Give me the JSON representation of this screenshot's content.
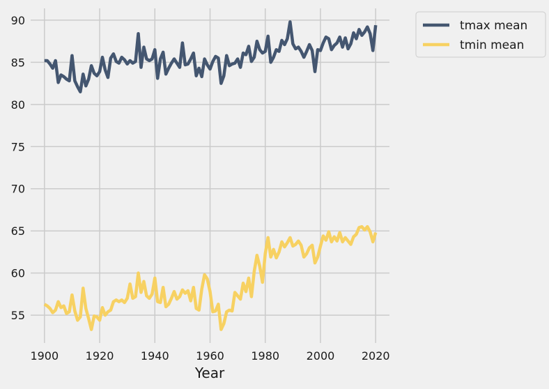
{
  "chart_data": {
    "type": "line",
    "xlabel": "Year",
    "ylabel": "",
    "xlim": [
      1895,
      2025
    ],
    "ylim": [
      51.7,
      91.4
    ],
    "xticks": [
      1900,
      1920,
      1940,
      1960,
      1980,
      2000,
      2020
    ],
    "yticks": [
      55,
      60,
      65,
      70,
      75,
      80,
      85,
      90
    ],
    "grid": true,
    "legend_position": "outside-top-right",
    "x": [
      1900,
      1901,
      1902,
      1903,
      1904,
      1905,
      1906,
      1907,
      1908,
      1909,
      1910,
      1911,
      1912,
      1913,
      1914,
      1915,
      1916,
      1917,
      1918,
      1919,
      1920,
      1921,
      1922,
      1923,
      1924,
      1925,
      1926,
      1927,
      1928,
      1929,
      1930,
      1931,
      1932,
      1933,
      1934,
      1935,
      1936,
      1937,
      1938,
      1939,
      1940,
      1941,
      1942,
      1943,
      1944,
      1945,
      1946,
      1947,
      1948,
      1949,
      1950,
      1951,
      1952,
      1953,
      1954,
      1955,
      1956,
      1957,
      1958,
      1959,
      1960,
      1961,
      1962,
      1963,
      1964,
      1965,
      1966,
      1967,
      1968,
      1969,
      1970,
      1971,
      1972,
      1973,
      1974,
      1975,
      1976,
      1977,
      1978,
      1979,
      1980,
      1981,
      1982,
      1983,
      1984,
      1985,
      1986,
      1987,
      1988,
      1989,
      1990,
      1991,
      1992,
      1993,
      1994,
      1995,
      1996,
      1997,
      1998,
      1999,
      2000,
      2001,
      2002,
      2003,
      2004,
      2005,
      2006,
      2007,
      2008,
      2009,
      2010,
      2011,
      2012,
      2013,
      2014,
      2015,
      2016,
      2017,
      2018,
      2019,
      2020
    ],
    "series": [
      {
        "name": "tmax mean",
        "color": "#445670",
        "values": [
          85.2,
          85.2,
          84.8,
          84.3,
          85.2,
          82.6,
          83.5,
          83.3,
          83.0,
          82.8,
          85.8,
          82.8,
          82.1,
          81.5,
          83.6,
          82.2,
          83.0,
          84.6,
          83.7,
          83.4,
          83.9,
          85.6,
          84.1,
          83.2,
          85.5,
          86.0,
          85.1,
          84.9,
          85.6,
          85.3,
          84.8,
          85.2,
          84.9,
          85.1,
          88.4,
          84.4,
          86.8,
          85.4,
          85.2,
          85.4,
          86.5,
          83.1,
          85.4,
          86.2,
          83.6,
          84.3,
          84.9,
          85.4,
          84.9,
          84.4,
          87.3,
          84.7,
          84.8,
          85.4,
          86.1,
          83.4,
          84.3,
          83.3,
          85.4,
          84.7,
          84.2,
          85.1,
          85.7,
          85.5,
          82.5,
          83.4,
          85.8,
          84.6,
          84.8,
          84.9,
          85.4,
          84.4,
          86.1,
          85.9,
          86.9,
          85.1,
          85.6,
          87.5,
          86.5,
          86.1,
          86.3,
          88.1,
          85.0,
          85.6,
          86.5,
          86.3,
          87.6,
          87.1,
          87.8,
          89.8,
          87.2,
          86.6,
          86.8,
          86.3,
          85.6,
          86.3,
          87.1,
          86.4,
          83.9,
          86.5,
          86.4,
          87.3,
          88.0,
          87.8,
          86.5,
          87.0,
          87.3,
          88.0,
          86.8,
          87.9,
          86.6,
          87.2,
          88.5,
          87.8,
          88.9,
          88.2,
          88.6,
          89.2,
          88.4,
          86.4,
          89.4
        ]
      },
      {
        "name": "tmin mean",
        "color": "#f7d162",
        "values": [
          56.3,
          56.1,
          55.8,
          55.3,
          55.6,
          56.6,
          55.9,
          56.1,
          55.2,
          55.4,
          57.4,
          55.5,
          54.4,
          54.8,
          58.2,
          55.8,
          54.6,
          53.3,
          54.9,
          54.8,
          54.4,
          55.9,
          55.0,
          55.4,
          55.6,
          56.6,
          56.8,
          56.6,
          56.8,
          56.5,
          57.0,
          58.7,
          57.0,
          57.2,
          60.0,
          57.7,
          59.0,
          57.3,
          57.0,
          57.5,
          59.4,
          56.6,
          56.5,
          58.3,
          56.0,
          56.3,
          57.0,
          57.8,
          56.9,
          57.2,
          58.0,
          57.6,
          57.9,
          56.7,
          58.3,
          55.8,
          55.6,
          58.1,
          59.8,
          59.3,
          57.8,
          55.4,
          55.5,
          56.3,
          53.3,
          54.0,
          55.4,
          55.6,
          55.5,
          57.7,
          57.3,
          56.9,
          58.8,
          57.8,
          59.4,
          57.2,
          60.2,
          62.1,
          60.8,
          58.9,
          62.3,
          64.2,
          61.9,
          62.8,
          61.8,
          62.5,
          63.7,
          63.1,
          63.6,
          64.2,
          63.2,
          63.4,
          63.8,
          63.3,
          61.9,
          62.3,
          63.0,
          63.3,
          61.2,
          61.9,
          63.2,
          64.4,
          63.9,
          64.9,
          63.7,
          64.3,
          63.8,
          64.8,
          63.7,
          64.2,
          63.8,
          63.4,
          64.3,
          64.6,
          65.4,
          65.5,
          65.1,
          65.5,
          64.9,
          63.7,
          64.8
        ]
      }
    ]
  }
}
